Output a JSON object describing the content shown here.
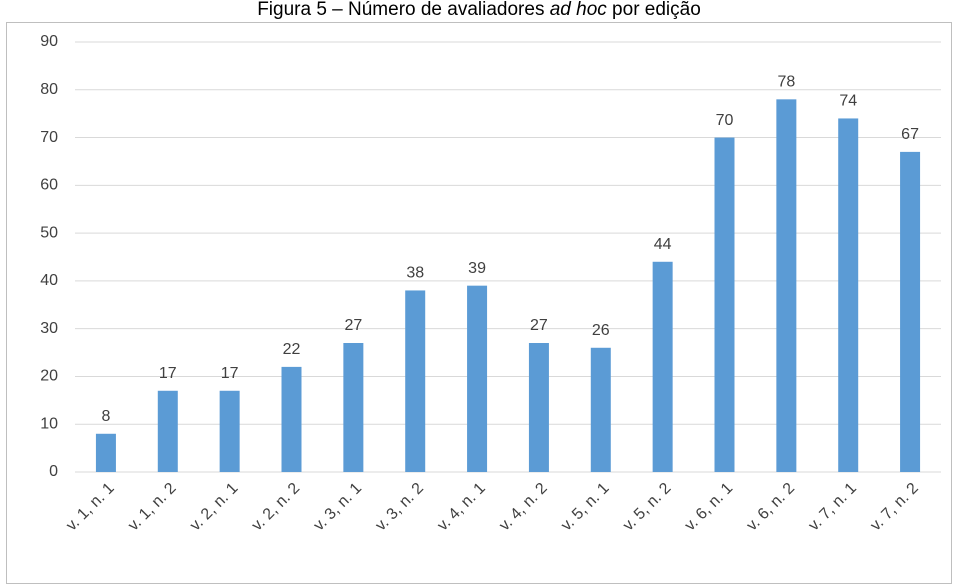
{
  "chart_data": {
    "type": "bar",
    "title_parts": [
      {
        "text": "Figura 5 – Número de avaliadores ",
        "italic": false
      },
      {
        "text": "ad hoc",
        "italic": true
      },
      {
        "text": " por edição",
        "italic": false
      }
    ],
    "categories": [
      "v. 1, n. 1",
      "v. 1, n. 2",
      "v. 2, n. 1",
      "v. 2, n. 2",
      "v. 3, n. 1",
      "v. 3, n. 2",
      "v. 4, n. 1",
      "v. 4, n. 2",
      "v. 5, n. 1",
      "v. 5, n. 2",
      "v. 6, n. 1",
      "v. 6, n. 2",
      "v. 7, n. 1",
      "v. 7, n. 2"
    ],
    "values": [
      8,
      17,
      17,
      22,
      27,
      38,
      39,
      27,
      26,
      44,
      70,
      78,
      74,
      67
    ],
    "color": "#5b9bd5",
    "ylim": [
      0,
      90
    ],
    "yticks": [
      0,
      10,
      20,
      30,
      40,
      50,
      60,
      70,
      80,
      90
    ],
    "grid": true
  }
}
